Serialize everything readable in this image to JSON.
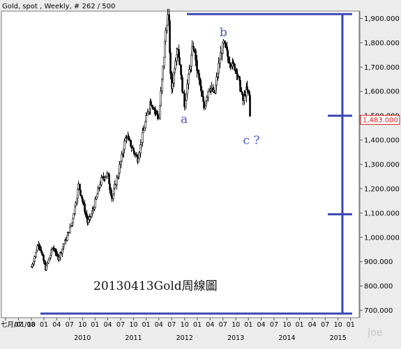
{
  "header": {
    "title": "Gold, spot , Weekly, # 262 / 500"
  },
  "watermark": "Joe",
  "chart_data": {
    "type": "candlestick",
    "title": "20130413Gold周線圖",
    "y_axis": {
      "min": 670,
      "max": 1930,
      "ticks": [
        "1,900.000",
        "1,800.000",
        "1,700.000",
        "1,600.000",
        "1,500.000",
        "1,400.000",
        "1,300.000",
        "1,200.000",
        "1,100.000",
        "1,000.000",
        "900.000",
        "800.000",
        "700.000"
      ],
      "tick_values": [
        1900,
        1800,
        1700,
        1600,
        1500,
        1400,
        1300,
        1200,
        1100,
        1000,
        900,
        800,
        700
      ],
      "current_price_label": "1,483.000",
      "current_price": 1483
    },
    "x_axis": {
      "month_labels": [
        "七月/01/08",
        "07",
        "10",
        "01",
        "04",
        "07",
        "10",
        "01",
        "04",
        "07",
        "10",
        "01",
        "04",
        "07",
        "10",
        "01",
        "04",
        "07",
        "10",
        "01",
        "04",
        "07",
        "10",
        "01",
        "04",
        "07",
        "10",
        "01"
      ],
      "year_labels": [
        "2010",
        "2011",
        "2012",
        "2013",
        "2014",
        "2015"
      ]
    },
    "annotations": [
      {
        "label": "a",
        "date": "2011-12-29",
        "price": 1545
      },
      {
        "label": "b",
        "date": "2012-10-04",
        "price": 1798
      },
      {
        "label": "c ?",
        "date": "2013-04-12",
        "price": 1480
      }
    ],
    "projection_lines": {
      "top": 1918,
      "bottom": 687,
      "ticks": [
        1500,
        1095
      ]
    },
    "price_series": [
      [
        "2009-01-01",
        880
      ],
      [
        "2009-02-20",
        980
      ],
      [
        "2009-04-10",
        870
      ],
      [
        "2009-06-01",
        960
      ],
      [
        "2009-07-10",
        915
      ],
      [
        "2009-09-01",
        990
      ],
      [
        "2009-10-15",
        1060
      ],
      [
        "2009-12-03",
        1215
      ],
      [
        "2010-02-05",
        1060
      ],
      [
        "2010-03-15",
        1110
      ],
      [
        "2010-05-14",
        1240
      ],
      [
        "2010-06-28",
        1260
      ],
      [
        "2010-07-28",
        1160
      ],
      [
        "2010-09-15",
        1270
      ],
      [
        "2010-11-08",
        1420
      ],
      [
        "2011-01-28",
        1320
      ],
      [
        "2011-03-07",
        1430
      ],
      [
        "2011-04-29",
        1560
      ],
      [
        "2011-06-30",
        1490
      ],
      [
        "2011-08-22",
        1880
      ],
      [
        "2011-09-05",
        1920
      ],
      [
        "2011-09-26",
        1600
      ],
      [
        "2011-11-08",
        1790
      ],
      [
        "2011-12-29",
        1545
      ],
      [
        "2012-02-28",
        1790
      ],
      [
        "2012-05-16",
        1530
      ],
      [
        "2012-06-20",
        1620
      ],
      [
        "2012-08-01",
        1590
      ],
      [
        "2012-09-07",
        1740
      ],
      [
        "2012-10-04",
        1798
      ],
      [
        "2012-11-09",
        1730
      ],
      [
        "2013-01-02",
        1690
      ],
      [
        "2013-02-20",
        1560
      ],
      [
        "2013-03-15",
        1610
      ],
      [
        "2013-04-05",
        1580
      ],
      [
        "2013-04-12",
        1483
      ]
    ]
  }
}
